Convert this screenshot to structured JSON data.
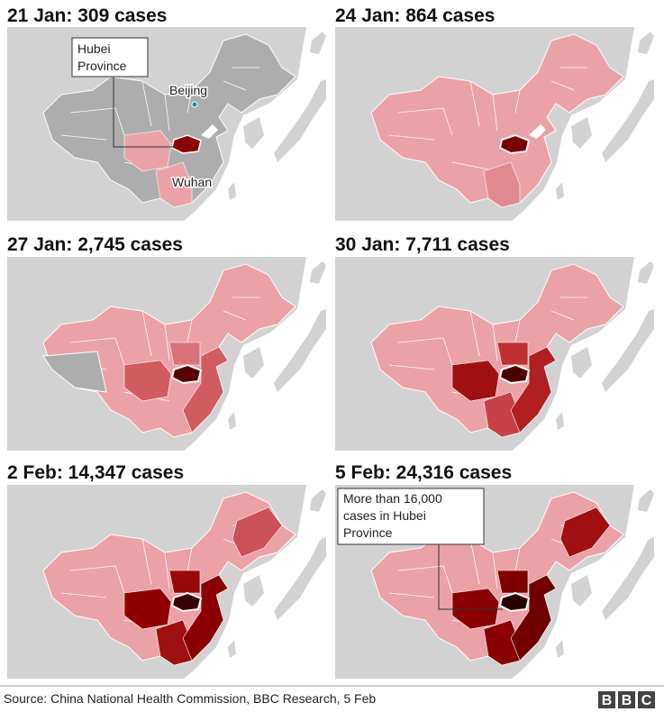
{
  "panels": [
    {
      "title": "21 Jan: 309 cases"
    },
    {
      "title": "24 Jan: 864 cases"
    },
    {
      "title": "27 Jan: 2,745 cases"
    },
    {
      "title": "30 Jan: 7,711 cases"
    },
    {
      "title": "2 Feb: 14,347 cases"
    },
    {
      "title": "5 Feb: 24,316 cases"
    }
  ],
  "annotations": {
    "hubei": [
      "Hubei",
      "Province"
    ],
    "beijing": "Beijing",
    "wuhan": "Wuhan",
    "hubei_cases": [
      "More than 16,000",
      "cases in Hubei",
      "Province"
    ]
  },
  "footer": {
    "source": "Source: China National Health Commission, BBC Research, 5 Feb",
    "logo": [
      "B",
      "B",
      "C"
    ]
  }
}
